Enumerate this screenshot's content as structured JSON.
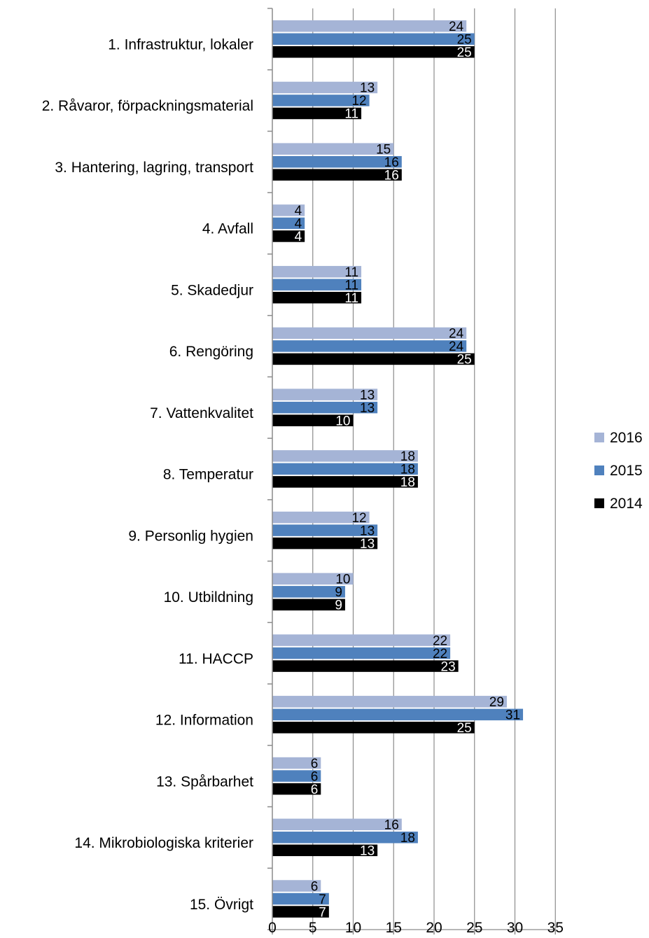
{
  "chart_data": {
    "type": "bar",
    "orientation": "horizontal",
    "categories": [
      "1. Infrastruktur, lokaler",
      "2. Råvaror, förpackningsmaterial",
      "3. Hantering, lagring, transport",
      "4. Avfall",
      "5. Skadedjur",
      "6. Rengöring",
      "7. Vattenkvalitet",
      "8. Temperatur",
      "9. Personlig hygien",
      "10. Utbildning",
      "11. HACCP",
      "12. Information",
      "13. Spårbarhet",
      "14. Mikrobiologiska kriterier",
      "15. Övrigt"
    ],
    "series": [
      {
        "name": "2016",
        "color": "#a5b4d6",
        "label_color": "#000000",
        "values": [
          24,
          13,
          15,
          4,
          11,
          24,
          13,
          18,
          12,
          10,
          22,
          29,
          6,
          16,
          6
        ]
      },
      {
        "name": "2015",
        "color": "#4f81bd",
        "label_color": "#000000",
        "values": [
          25,
          12,
          16,
          4,
          11,
          24,
          13,
          18,
          13,
          9,
          22,
          31,
          6,
          18,
          7
        ]
      },
      {
        "name": "2014",
        "color": "#000000",
        "label_color": "#ffffff",
        "values": [
          25,
          11,
          16,
          4,
          11,
          25,
          10,
          18,
          13,
          9,
          23,
          25,
          6,
          13,
          7
        ]
      }
    ],
    "xlim": [
      0,
      35
    ],
    "xticks": [
      0,
      5,
      10,
      15,
      20,
      25,
      30,
      35
    ],
    "grid": true,
    "legend_position": "right",
    "data_labels": true,
    "title": "",
    "xlabel": "",
    "ylabel": ""
  }
}
